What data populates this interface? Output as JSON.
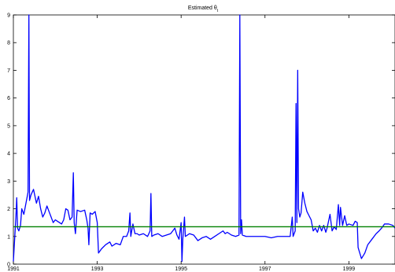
{
  "chart_data": {
    "type": "line",
    "title": "Estimated θ",
    "title_subscript": "t",
    "xlabel": "",
    "ylabel": "",
    "xlim": [
      1991,
      2000.1
    ],
    "ylim": [
      0,
      9
    ],
    "x_ticks": [
      1991,
      1993,
      1995,
      1997,
      1999
    ],
    "y_ticks": [
      0,
      1,
      2,
      3,
      4,
      5,
      6,
      7,
      8,
      9
    ],
    "grid": false,
    "series": [
      {
        "color": "#0000ff",
        "points": [
          [
            1991.0,
            0.1
          ],
          [
            1991.03,
            0.9
          ],
          [
            1991.06,
            1.7
          ],
          [
            1991.08,
            2.4
          ],
          [
            1991.1,
            1.3
          ],
          [
            1991.13,
            1.2
          ],
          [
            1991.17,
            1.4
          ],
          [
            1991.2,
            2.0
          ],
          [
            1991.25,
            1.8
          ],
          [
            1991.3,
            2.2
          ],
          [
            1991.35,
            2.6
          ],
          [
            1991.37,
            9.0
          ],
          [
            1991.385,
            2.3
          ],
          [
            1991.42,
            2.5
          ],
          [
            1991.48,
            2.7
          ],
          [
            1991.55,
            2.2
          ],
          [
            1991.6,
            2.45
          ],
          [
            1991.65,
            2.0
          ],
          [
            1991.7,
            1.7
          ],
          [
            1991.75,
            1.85
          ],
          [
            1991.8,
            2.1
          ],
          [
            1991.85,
            1.9
          ],
          [
            1991.9,
            1.7
          ],
          [
            1991.95,
            1.5
          ],
          [
            1992.0,
            1.6
          ],
          [
            1992.05,
            1.55
          ],
          [
            1992.1,
            1.5
          ],
          [
            1992.15,
            1.45
          ],
          [
            1992.2,
            1.6
          ],
          [
            1992.25,
            2.0
          ],
          [
            1992.3,
            1.95
          ],
          [
            1992.35,
            1.6
          ],
          [
            1992.4,
            1.7
          ],
          [
            1992.43,
            3.3
          ],
          [
            1992.45,
            1.5
          ],
          [
            1992.48,
            1.1
          ],
          [
            1992.52,
            1.95
          ],
          [
            1992.6,
            1.9
          ],
          [
            1992.7,
            1.95
          ],
          [
            1992.75,
            1.6
          ],
          [
            1992.78,
            1.3
          ],
          [
            1992.8,
            0.7
          ],
          [
            1992.83,
            1.85
          ],
          [
            1992.88,
            1.8
          ],
          [
            1992.95,
            1.9
          ],
          [
            1993.0,
            1.5
          ],
          [
            1993.03,
            0.4
          ],
          [
            1993.1,
            0.55
          ],
          [
            1993.2,
            0.7
          ],
          [
            1993.3,
            0.8
          ],
          [
            1993.35,
            0.65
          ],
          [
            1993.45,
            0.75
          ],
          [
            1993.55,
            0.7
          ],
          [
            1993.62,
            1.0
          ],
          [
            1993.7,
            1.0
          ],
          [
            1993.75,
            1.2
          ],
          [
            1993.78,
            1.85
          ],
          [
            1993.8,
            1.0
          ],
          [
            1993.85,
            1.45
          ],
          [
            1993.9,
            1.1
          ],
          [
            1993.95,
            1.1
          ],
          [
            1994.0,
            1.05
          ],
          [
            1994.1,
            1.1
          ],
          [
            1994.2,
            1.0
          ],
          [
            1994.26,
            1.2
          ],
          [
            1994.28,
            2.55
          ],
          [
            1994.3,
            1.0
          ],
          [
            1994.35,
            1.05
          ],
          [
            1994.45,
            1.1
          ],
          [
            1994.55,
            1.0
          ],
          [
            1994.65,
            1.05
          ],
          [
            1994.75,
            1.1
          ],
          [
            1994.85,
            1.3
          ],
          [
            1994.9,
            1.05
          ],
          [
            1994.95,
            0.9
          ],
          [
            1995.0,
            1.5
          ],
          [
            1995.02,
            0.1
          ],
          [
            1995.04,
            0.9
          ],
          [
            1995.08,
            1.7
          ],
          [
            1995.1,
            1.0
          ],
          [
            1995.2,
            1.1
          ],
          [
            1995.3,
            1.05
          ],
          [
            1995.4,
            0.85
          ],
          [
            1995.5,
            0.95
          ],
          [
            1995.6,
            1.0
          ],
          [
            1995.7,
            0.9
          ],
          [
            1995.8,
            1.0
          ],
          [
            1995.9,
            1.1
          ],
          [
            1996.0,
            1.2
          ],
          [
            1996.05,
            1.1
          ],
          [
            1996.1,
            1.15
          ],
          [
            1996.2,
            1.05
          ],
          [
            1996.3,
            1.0
          ],
          [
            1996.38,
            1.05
          ],
          [
            1996.4,
            9.0
          ],
          [
            1996.42,
            1.1
          ],
          [
            1996.44,
            1.6
          ],
          [
            1996.46,
            1.05
          ],
          [
            1996.55,
            1.0
          ],
          [
            1996.7,
            1.0
          ],
          [
            1996.85,
            1.0
          ],
          [
            1997.0,
            1.0
          ],
          [
            1997.15,
            0.95
          ],
          [
            1997.3,
            1.0
          ],
          [
            1997.45,
            1.0
          ],
          [
            1997.6,
            1.0
          ],
          [
            1997.65,
            1.7
          ],
          [
            1997.67,
            1.0
          ],
          [
            1997.72,
            1.2
          ],
          [
            1997.74,
            5.8
          ],
          [
            1997.76,
            1.5
          ],
          [
            1997.78,
            7.0
          ],
          [
            1997.8,
            2.0
          ],
          [
            1997.83,
            1.7
          ],
          [
            1997.86,
            1.85
          ],
          [
            1997.9,
            2.6
          ],
          [
            1997.95,
            2.2
          ],
          [
            1998.0,
            1.9
          ],
          [
            1998.05,
            1.75
          ],
          [
            1998.1,
            1.6
          ],
          [
            1998.15,
            1.2
          ],
          [
            1998.2,
            1.3
          ],
          [
            1998.25,
            1.15
          ],
          [
            1998.3,
            1.4
          ],
          [
            1998.35,
            1.2
          ],
          [
            1998.4,
            1.4
          ],
          [
            1998.45,
            1.15
          ],
          [
            1998.48,
            1.3
          ],
          [
            1998.55,
            1.8
          ],
          [
            1998.6,
            1.2
          ],
          [
            1998.65,
            1.35
          ],
          [
            1998.7,
            1.25
          ],
          [
            1998.75,
            2.15
          ],
          [
            1998.78,
            1.4
          ],
          [
            1998.8,
            2.05
          ],
          [
            1998.85,
            1.4
          ],
          [
            1998.9,
            1.75
          ],
          [
            1998.95,
            1.4
          ],
          [
            1999.0,
            1.45
          ],
          [
            1999.1,
            1.4
          ],
          [
            1999.15,
            1.55
          ],
          [
            1999.2,
            1.5
          ],
          [
            1999.22,
            0.6
          ],
          [
            1999.3,
            0.2
          ],
          [
            1999.38,
            0.4
          ],
          [
            1999.45,
            0.7
          ],
          [
            1999.55,
            0.9
          ],
          [
            1999.65,
            1.1
          ],
          [
            1999.72,
            1.2
          ],
          [
            1999.78,
            1.3
          ],
          [
            1999.85,
            1.45
          ],
          [
            1999.95,
            1.45
          ],
          [
            2000.05,
            1.4
          ],
          [
            2000.1,
            1.3
          ]
        ]
      },
      {
        "color": "#008000",
        "points": [
          [
            1991.0,
            1.35
          ],
          [
            2000.1,
            1.35
          ]
        ]
      }
    ]
  }
}
